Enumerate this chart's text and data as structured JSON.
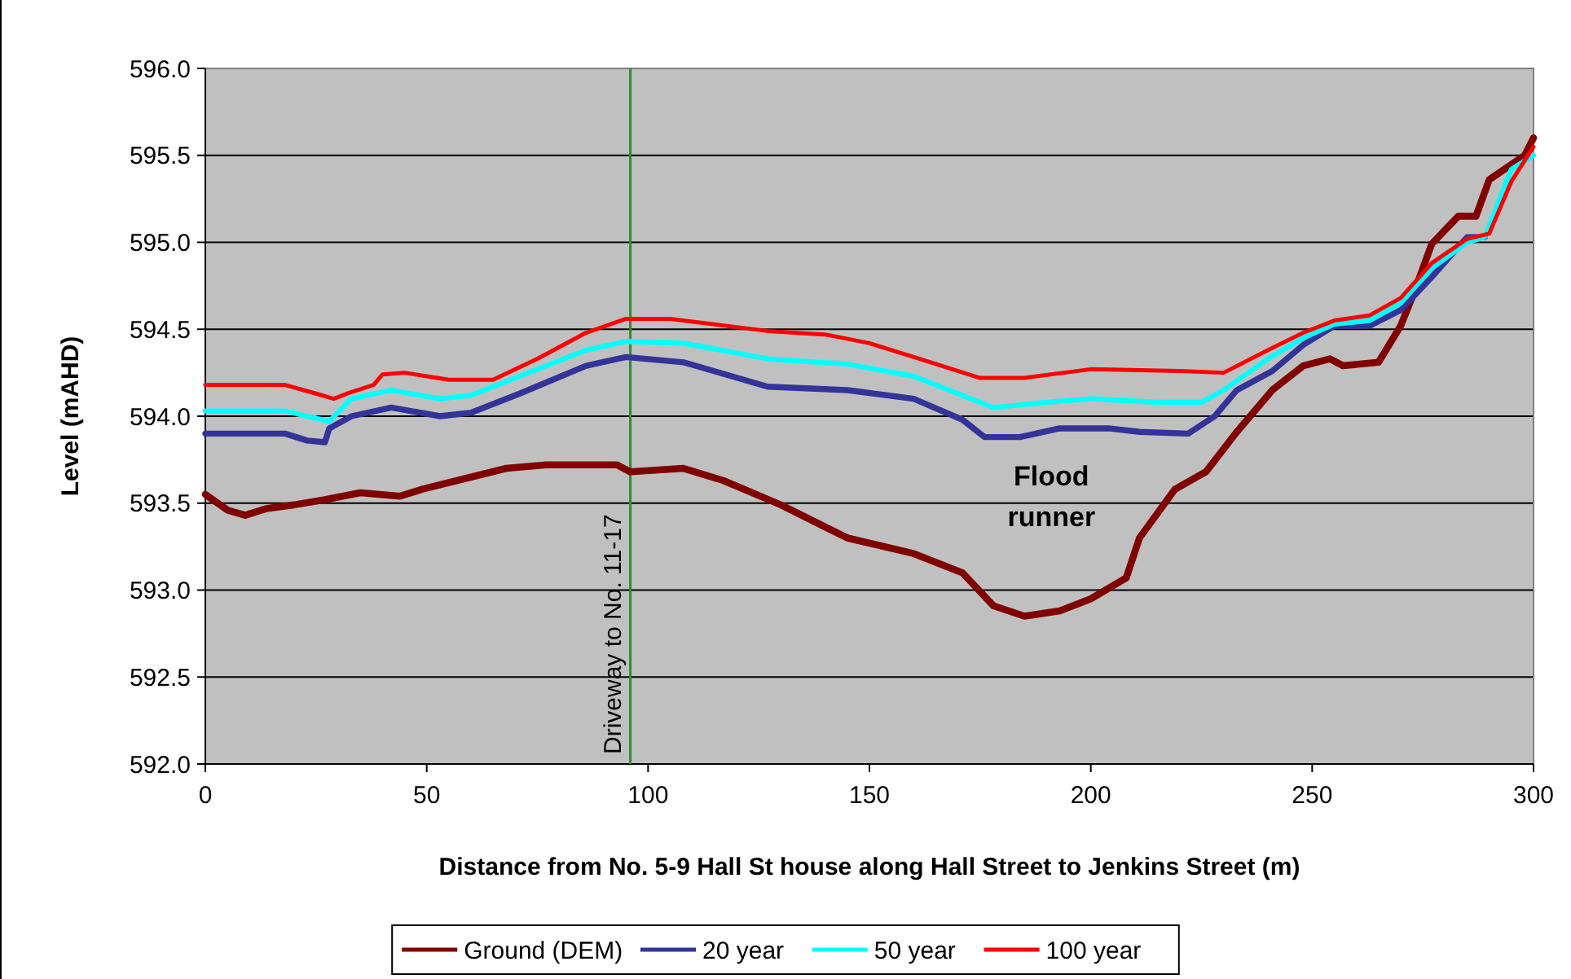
{
  "chart_data": {
    "type": "line",
    "xlabel": "Distance from No. 5-9 Hall St house along Hall Street to Jenkins Street (m)",
    "ylabel": "Level (mAHD)",
    "xlim": [
      0,
      300
    ],
    "xticks": [
      0,
      50,
      100,
      150,
      200,
      250,
      300
    ],
    "ylim": [
      592,
      596
    ],
    "yticks": [
      {
        "value": 592,
        "label": "592.0"
      },
      {
        "value": 592.5,
        "label": "592.5"
      },
      {
        "value": 593,
        "label": "593.0"
      },
      {
        "value": 593.5,
        "label": "593.5"
      },
      {
        "value": 594,
        "label": "594.0"
      },
      {
        "value": 594.5,
        "label": "594.5"
      },
      {
        "value": 595,
        "label": "595.0"
      },
      {
        "value": 595.5,
        "label": "595.5"
      },
      {
        "value": 596,
        "label": "596.0"
      }
    ],
    "grid": "y",
    "legend": "bottom",
    "marker": "none",
    "line_style": "solid",
    "ref_lines": [
      {
        "axis": "x",
        "value": 96,
        "label": "Driveway to No. 11-17",
        "color": "#2e8b2e"
      }
    ],
    "annotations": [
      "Flood runner"
    ],
    "series": [
      {
        "name": "Ground (DEM)",
        "color": "#800000",
        "x": [
          0,
          5,
          9,
          14,
          20,
          27,
          35,
          44,
          49,
          60,
          68,
          77,
          93,
          96,
          108,
          117,
          130,
          145,
          160,
          171,
          178,
          185,
          193,
          200,
          208,
          211,
          219,
          226,
          233,
          241,
          248,
          254,
          257,
          265,
          270,
          273,
          277,
          283,
          287,
          290,
          298,
          300
        ],
        "values": [
          593.55,
          593.46,
          593.43,
          593.47,
          593.49,
          593.52,
          593.56,
          593.54,
          593.58,
          593.65,
          593.7,
          593.72,
          593.72,
          593.68,
          593.7,
          593.63,
          593.49,
          593.3,
          593.21,
          593.1,
          592.91,
          592.85,
          592.88,
          592.95,
          593.07,
          593.3,
          593.58,
          593.68,
          593.91,
          594.15,
          594.29,
          594.33,
          594.29,
          594.31,
          594.52,
          594.71,
          594.99,
          595.15,
          595.15,
          595.36,
          595.5,
          595.6
        ]
      },
      {
        "name": "20 year",
        "color": "#333399",
        "x": [
          0,
          18,
          23,
          27,
          28,
          33,
          42,
          53,
          60,
          71,
          86,
          95,
          108,
          127,
          145,
          160,
          171,
          176,
          184,
          193,
          204,
          211,
          222,
          228,
          233,
          241,
          248,
          255,
          263,
          270,
          277,
          285,
          289
        ],
        "values": [
          593.9,
          593.9,
          593.86,
          593.85,
          593.93,
          594.0,
          594.05,
          594.0,
          594.02,
          594.13,
          594.29,
          594.34,
          594.31,
          594.17,
          594.15,
          594.1,
          593.98,
          593.88,
          593.88,
          593.93,
          593.93,
          593.91,
          593.9,
          594.0,
          594.15,
          594.26,
          594.41,
          594.52,
          594.52,
          594.61,
          594.8,
          595.03,
          595.03
        ]
      },
      {
        "name": "50 year",
        "color": "#00ffff",
        "x": [
          0,
          18,
          28,
          33,
          42,
          53,
          60,
          71,
          86,
          95,
          108,
          127,
          145,
          160,
          171,
          178,
          190,
          200,
          215,
          225,
          230,
          240,
          248,
          255,
          263,
          270,
          277,
          285,
          289,
          295,
          300
        ],
        "values": [
          594.03,
          594.03,
          593.97,
          594.1,
          594.15,
          594.1,
          594.12,
          594.23,
          594.38,
          594.43,
          594.42,
          594.33,
          594.3,
          594.23,
          594.12,
          594.05,
          594.08,
          594.1,
          594.08,
          594.08,
          594.15,
          594.33,
          594.45,
          594.53,
          594.55,
          594.65,
          594.85,
          595.0,
          595.03,
          595.42,
          595.5
        ]
      },
      {
        "name": "100 year",
        "color": "#ff0000",
        "x": [
          0,
          18,
          25,
          29,
          32,
          38,
          40,
          45,
          55,
          65,
          75,
          86,
          95,
          105,
          127,
          140,
          150,
          165,
          175,
          185,
          200,
          220,
          230,
          240,
          248,
          255,
          263,
          270,
          277,
          285,
          290,
          295,
          300
        ],
        "values": [
          594.18,
          594.18,
          594.13,
          594.1,
          594.13,
          594.18,
          594.24,
          594.25,
          594.21,
          594.21,
          594.33,
          594.48,
          594.56,
          594.56,
          594.49,
          594.47,
          594.42,
          594.3,
          594.22,
          594.22,
          594.27,
          594.26,
          594.25,
          594.38,
          594.48,
          594.55,
          594.58,
          594.68,
          594.88,
          595.02,
          595.05,
          595.35,
          595.55
        ]
      }
    ]
  }
}
